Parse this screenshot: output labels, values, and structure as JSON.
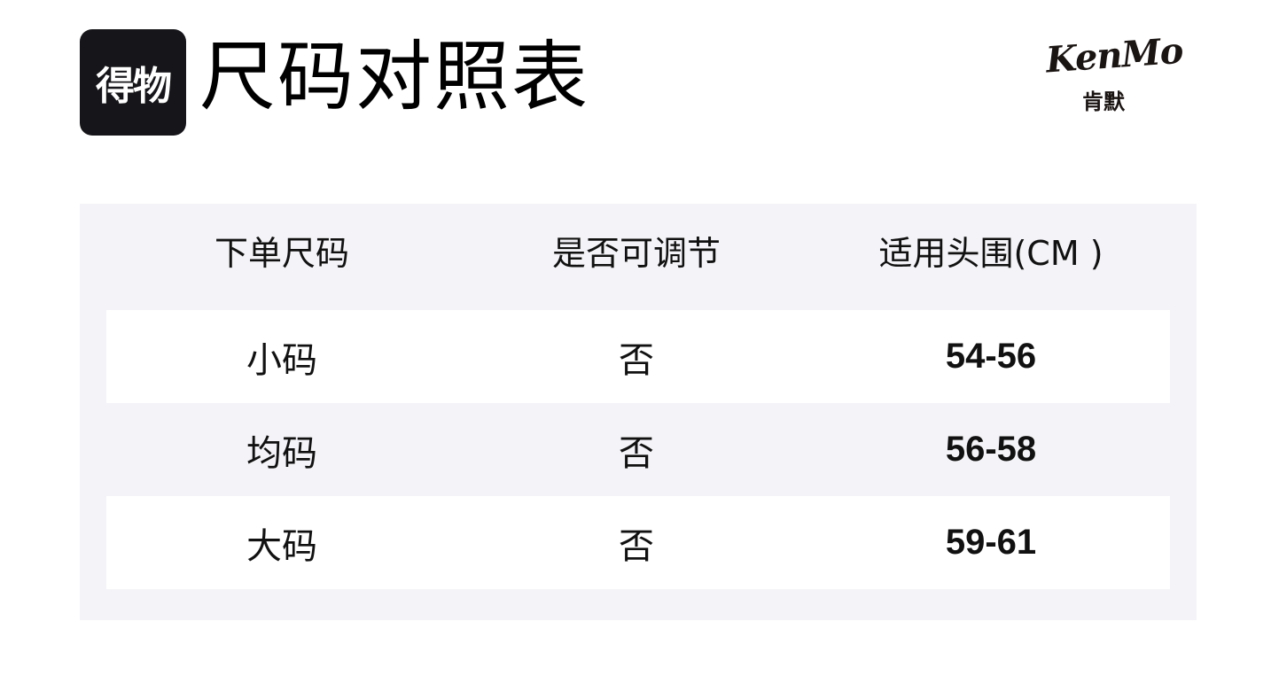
{
  "brand_badge": "得物",
  "title": "尺码对照表",
  "logo": {
    "text_en": "KenMo",
    "text_cn": "肯默"
  },
  "table": {
    "headers": [
      "下单尺码",
      "是否可调节",
      "适用头围(CM )"
    ],
    "rows": [
      [
        "小码",
        "否",
        "54-56"
      ],
      [
        "均码",
        "否",
        "56-58"
      ],
      [
        "大码",
        "否",
        "59-61"
      ]
    ]
  }
}
